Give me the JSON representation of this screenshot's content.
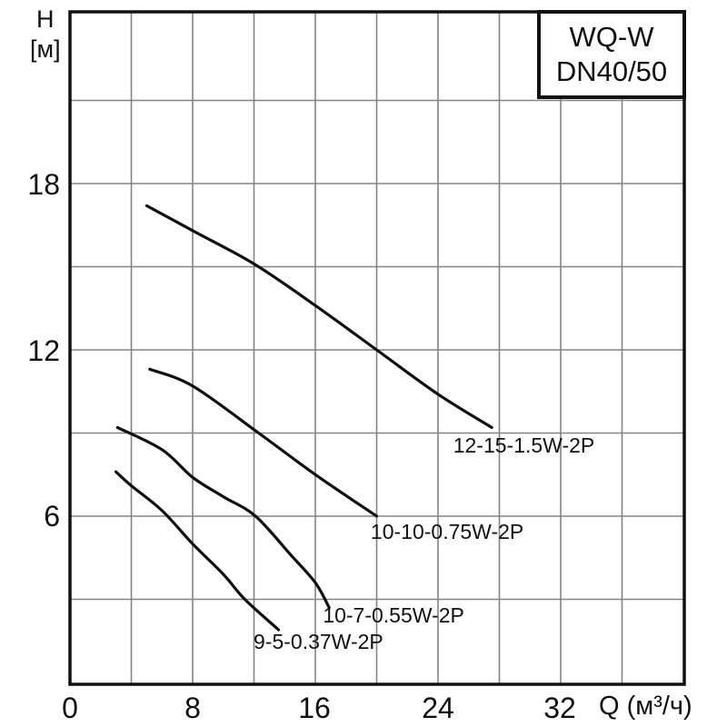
{
  "window": {
    "background": "#ffffff"
  },
  "title_box": {
    "lines": [
      "WQ-W",
      "DN40/50"
    ]
  },
  "chart_data": {
    "type": "line",
    "title": "WQ-W DN40/50",
    "x_axis": {
      "label": "Q (м³/ч)",
      "tick_labels": [
        "0",
        "8",
        "16",
        "24",
        "32"
      ],
      "tick_values": [
        0,
        8,
        16,
        24,
        32
      ],
      "range": [
        0,
        40
      ],
      "grid_step": 4
    },
    "y_axis": {
      "label": "H",
      "unit": "[м]",
      "tick_labels": [
        "18",
        "12",
        "6"
      ],
      "tick_values": [
        18,
        12,
        6
      ],
      "range": [
        0,
        24.2
      ],
      "grid_step": 3
    },
    "grid": true,
    "legend_position": "inline-labels",
    "series": [
      {
        "name": "12-15-1.5W-2P",
        "points": [
          [
            5.0,
            17.2
          ],
          [
            8,
            16.3
          ],
          [
            12,
            15.1
          ],
          [
            16,
            13.6
          ],
          [
            20,
            12.0
          ],
          [
            24,
            10.4
          ],
          [
            27.5,
            9.2
          ]
        ],
        "label_pos": [
          29.6,
          8.55
        ]
      },
      {
        "name": "10-10-0.75W-2P",
        "points": [
          [
            5.2,
            11.3
          ],
          [
            8,
            10.7
          ],
          [
            12.3,
            9.0
          ],
          [
            16,
            7.5
          ],
          [
            20,
            6.0
          ]
        ],
        "label_pos": [
          24.6,
          5.44
        ]
      },
      {
        "name": "10-7-0.55W-2P",
        "points": [
          [
            3.1,
            9.2
          ],
          [
            6,
            8.4
          ],
          [
            8,
            7.4
          ],
          [
            10,
            6.7
          ],
          [
            12.1,
            6.0
          ],
          [
            14.4,
            4.6
          ],
          [
            16,
            3.6
          ],
          [
            16.9,
            2.7
          ]
        ],
        "label_pos": [
          21.1,
          2.43
        ]
      },
      {
        "name": "9-5-0.37W-2P",
        "points": [
          [
            3.0,
            7.6
          ],
          [
            4,
            7.1
          ],
          [
            6,
            6.2
          ],
          [
            8,
            5.0
          ],
          [
            10,
            3.9
          ],
          [
            11.4,
            3.0
          ],
          [
            13.6,
            1.9
          ]
        ],
        "label_pos": [
          16.2,
          1.48
        ]
      }
    ],
    "colors": {
      "curve": "#111111",
      "grid": "#848484",
      "frame": "#111111",
      "text": "#111111",
      "background": "#ffffff"
    }
  }
}
